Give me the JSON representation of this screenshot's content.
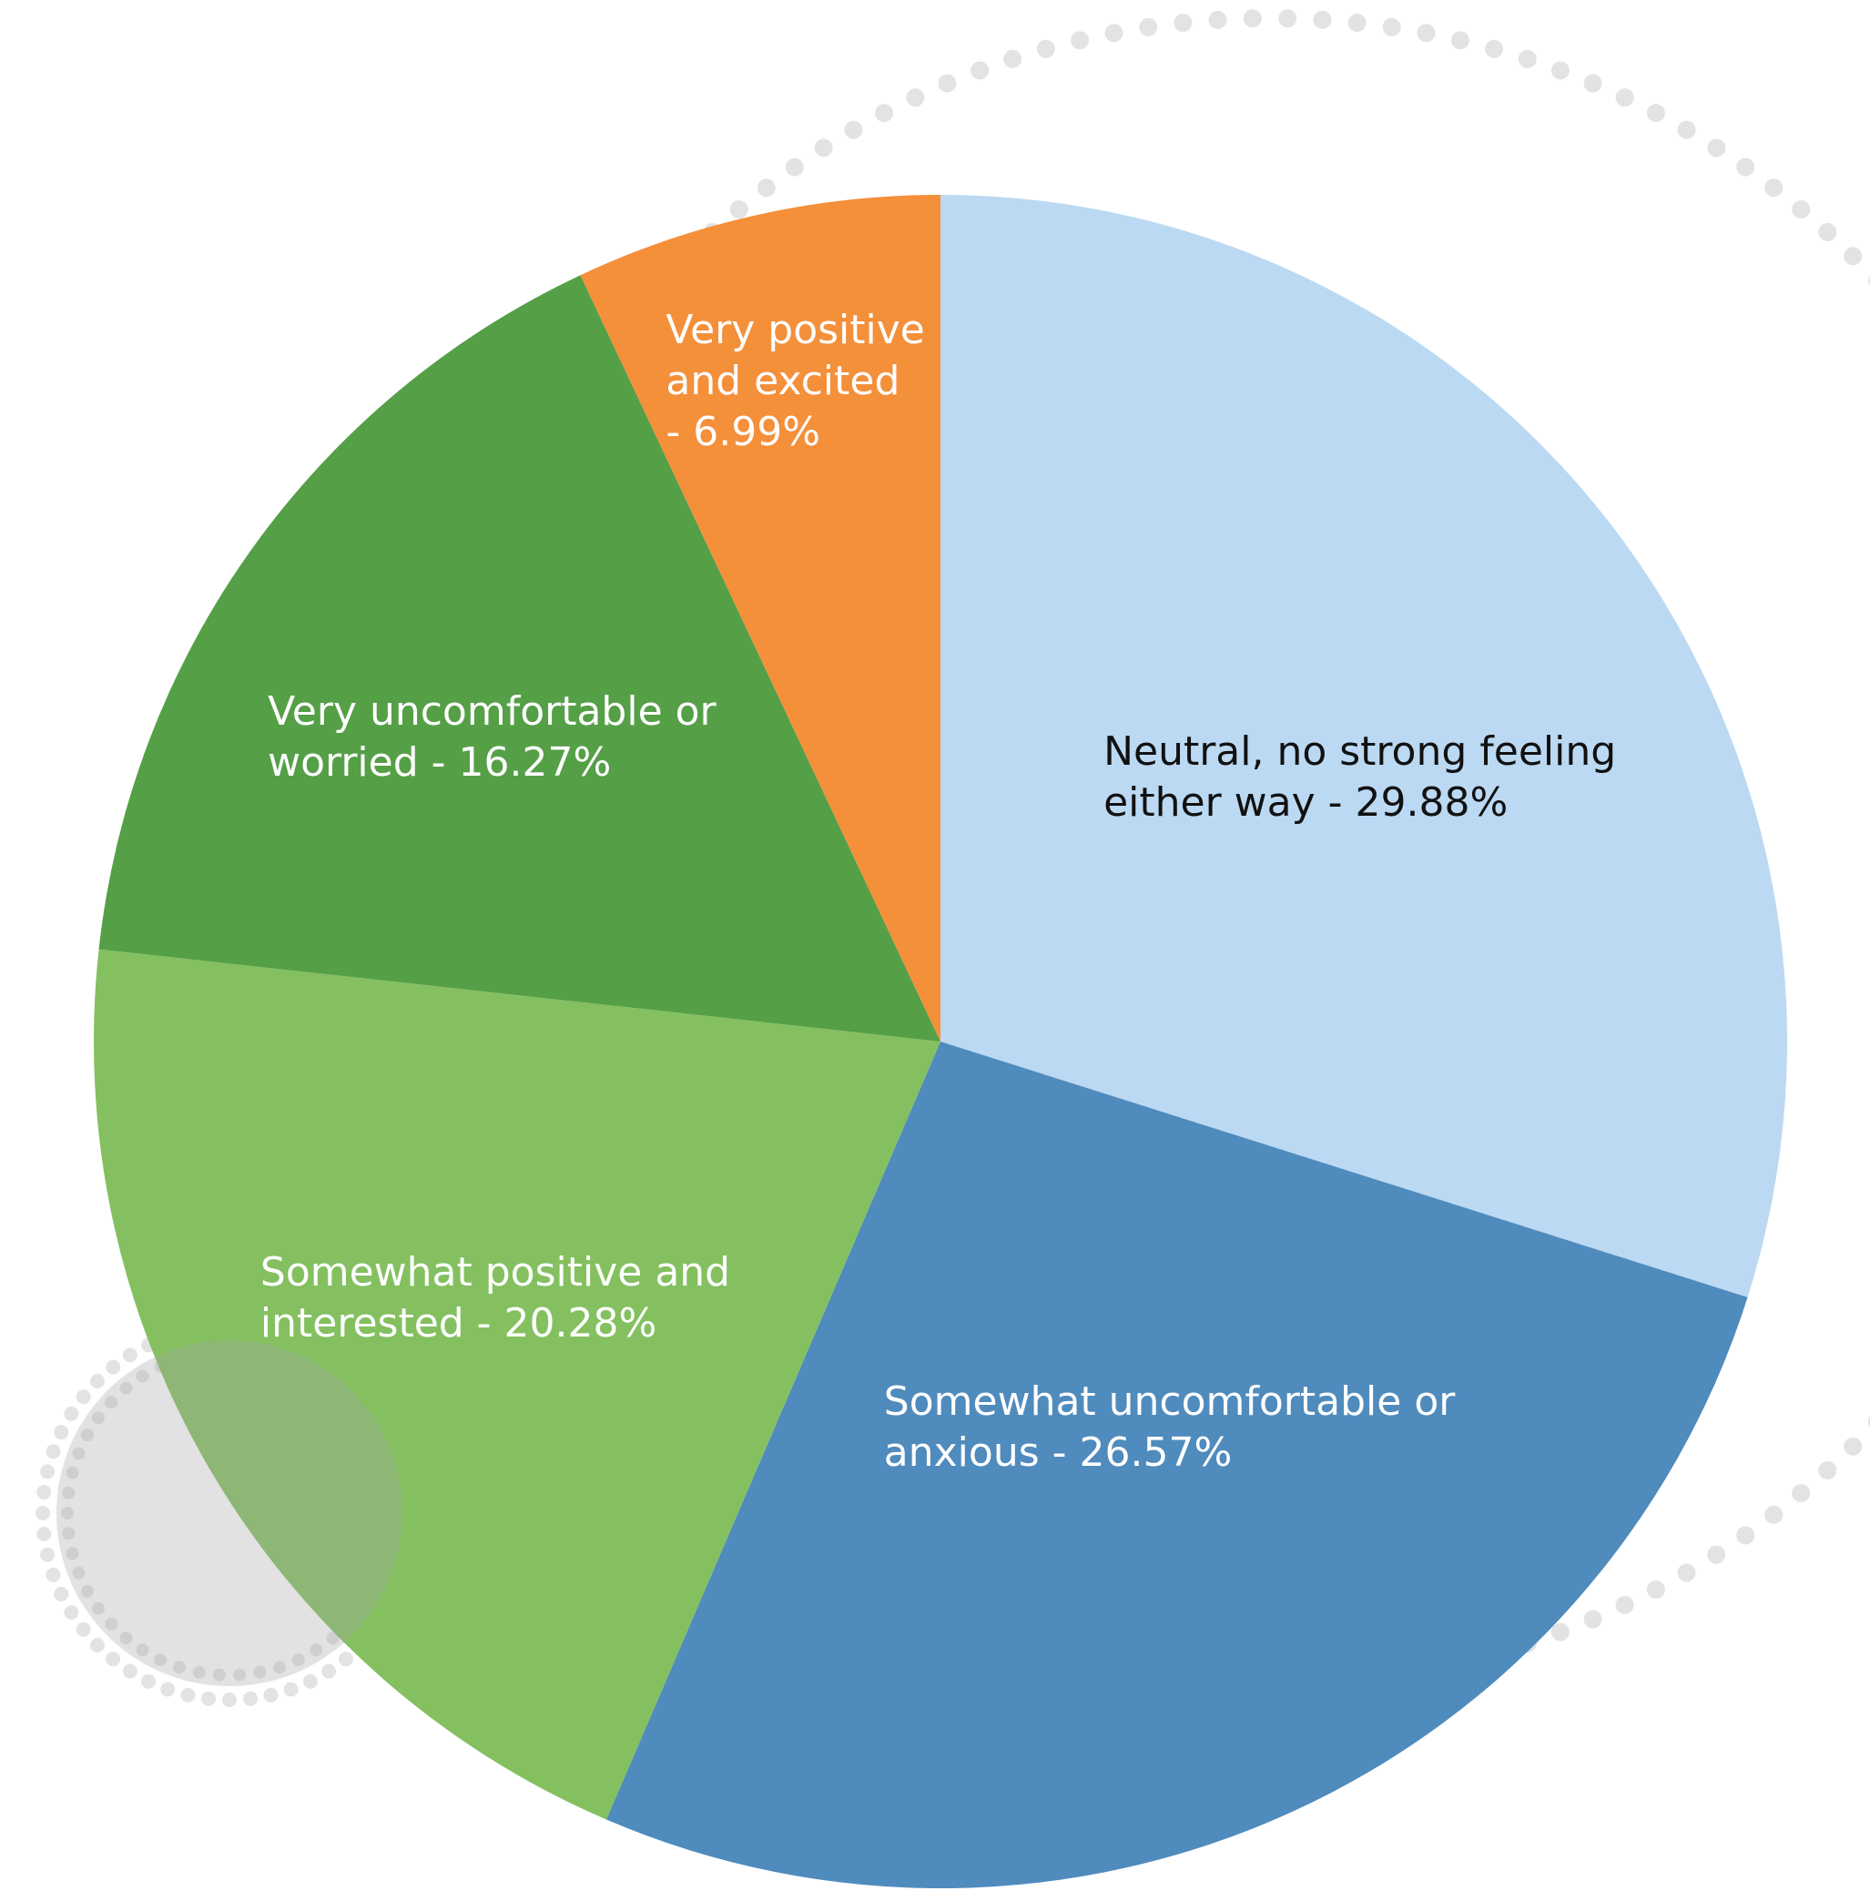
{
  "chart_data": {
    "type": "pie",
    "start": "12 o'clock",
    "direction": "clockwise",
    "slices": [
      {
        "label": "Neutral, no strong feeling either way",
        "value": 29.88,
        "display": [
          "Neutral, no strong feeling",
          "either way - 29.88%"
        ],
        "color": "#BBD9F2",
        "text_color": "#111111"
      },
      {
        "label": "Somewhat uncomfortable or anxious",
        "value": 26.57,
        "display": [
          "Somewhat uncomfortable or",
          "anxious - 26.57%"
        ],
        "color": "#4F8BBD",
        "text_color": "#FFFFFF"
      },
      {
        "label": "Somewhat positive and interested",
        "value": 20.28,
        "display": [
          "Somewhat positive and",
          "interested - 20.28%"
        ],
        "color": "#84C060",
        "text_color": "#FFFFFF"
      },
      {
        "label": "Very uncomfortable or worried",
        "value": 16.27,
        "display": [
          "Very uncomfortable or",
          "worried - 16.27%"
        ],
        "color": "#559F47",
        "text_color": "#FFFFFF"
      },
      {
        "label": "Very positive and excited",
        "value": 6.99,
        "display": [
          "Very positive",
          "and excited",
          "- 6.99%"
        ],
        "color": "#F48F3A",
        "text_color": "#FFFFFF"
      }
    ],
    "decoration_color": "#E3E3E3"
  }
}
